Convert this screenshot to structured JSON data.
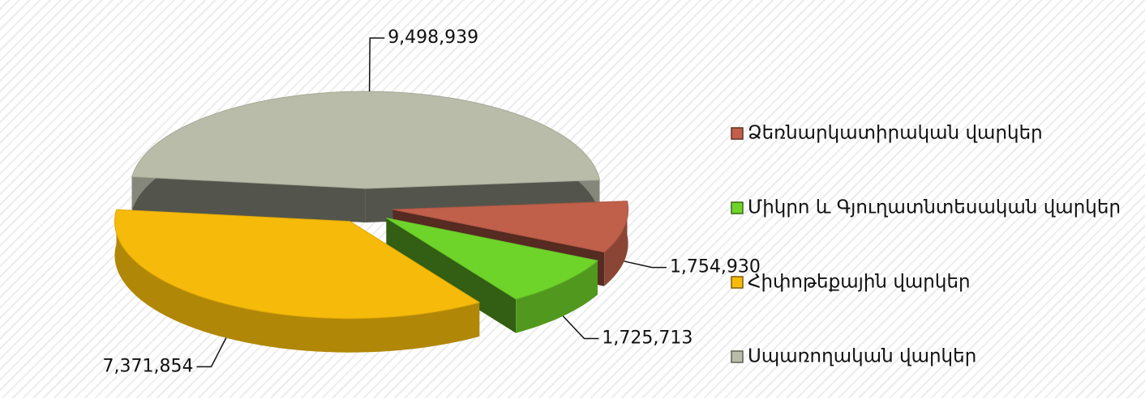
{
  "chart_data": {
    "type": "pie3d",
    "categories": [
      "Ձեռնարկատիրական վարկեր",
      "Միկրո և Գյուղատնտեսական վարկեր",
      "Հիփոթեքային վարկեր",
      "Սպառողական վարկեր"
    ],
    "values": [
      1754930,
      1725713,
      7371854,
      9498939
    ],
    "value_labels": [
      "1,754,930",
      "1,725,713",
      "7,371,854",
      "9,498,939"
    ],
    "colors": [
      "#c0604a",
      "#6fd42a",
      "#f6bb0a",
      "#b9bca9"
    ],
    "legend": "right"
  }
}
